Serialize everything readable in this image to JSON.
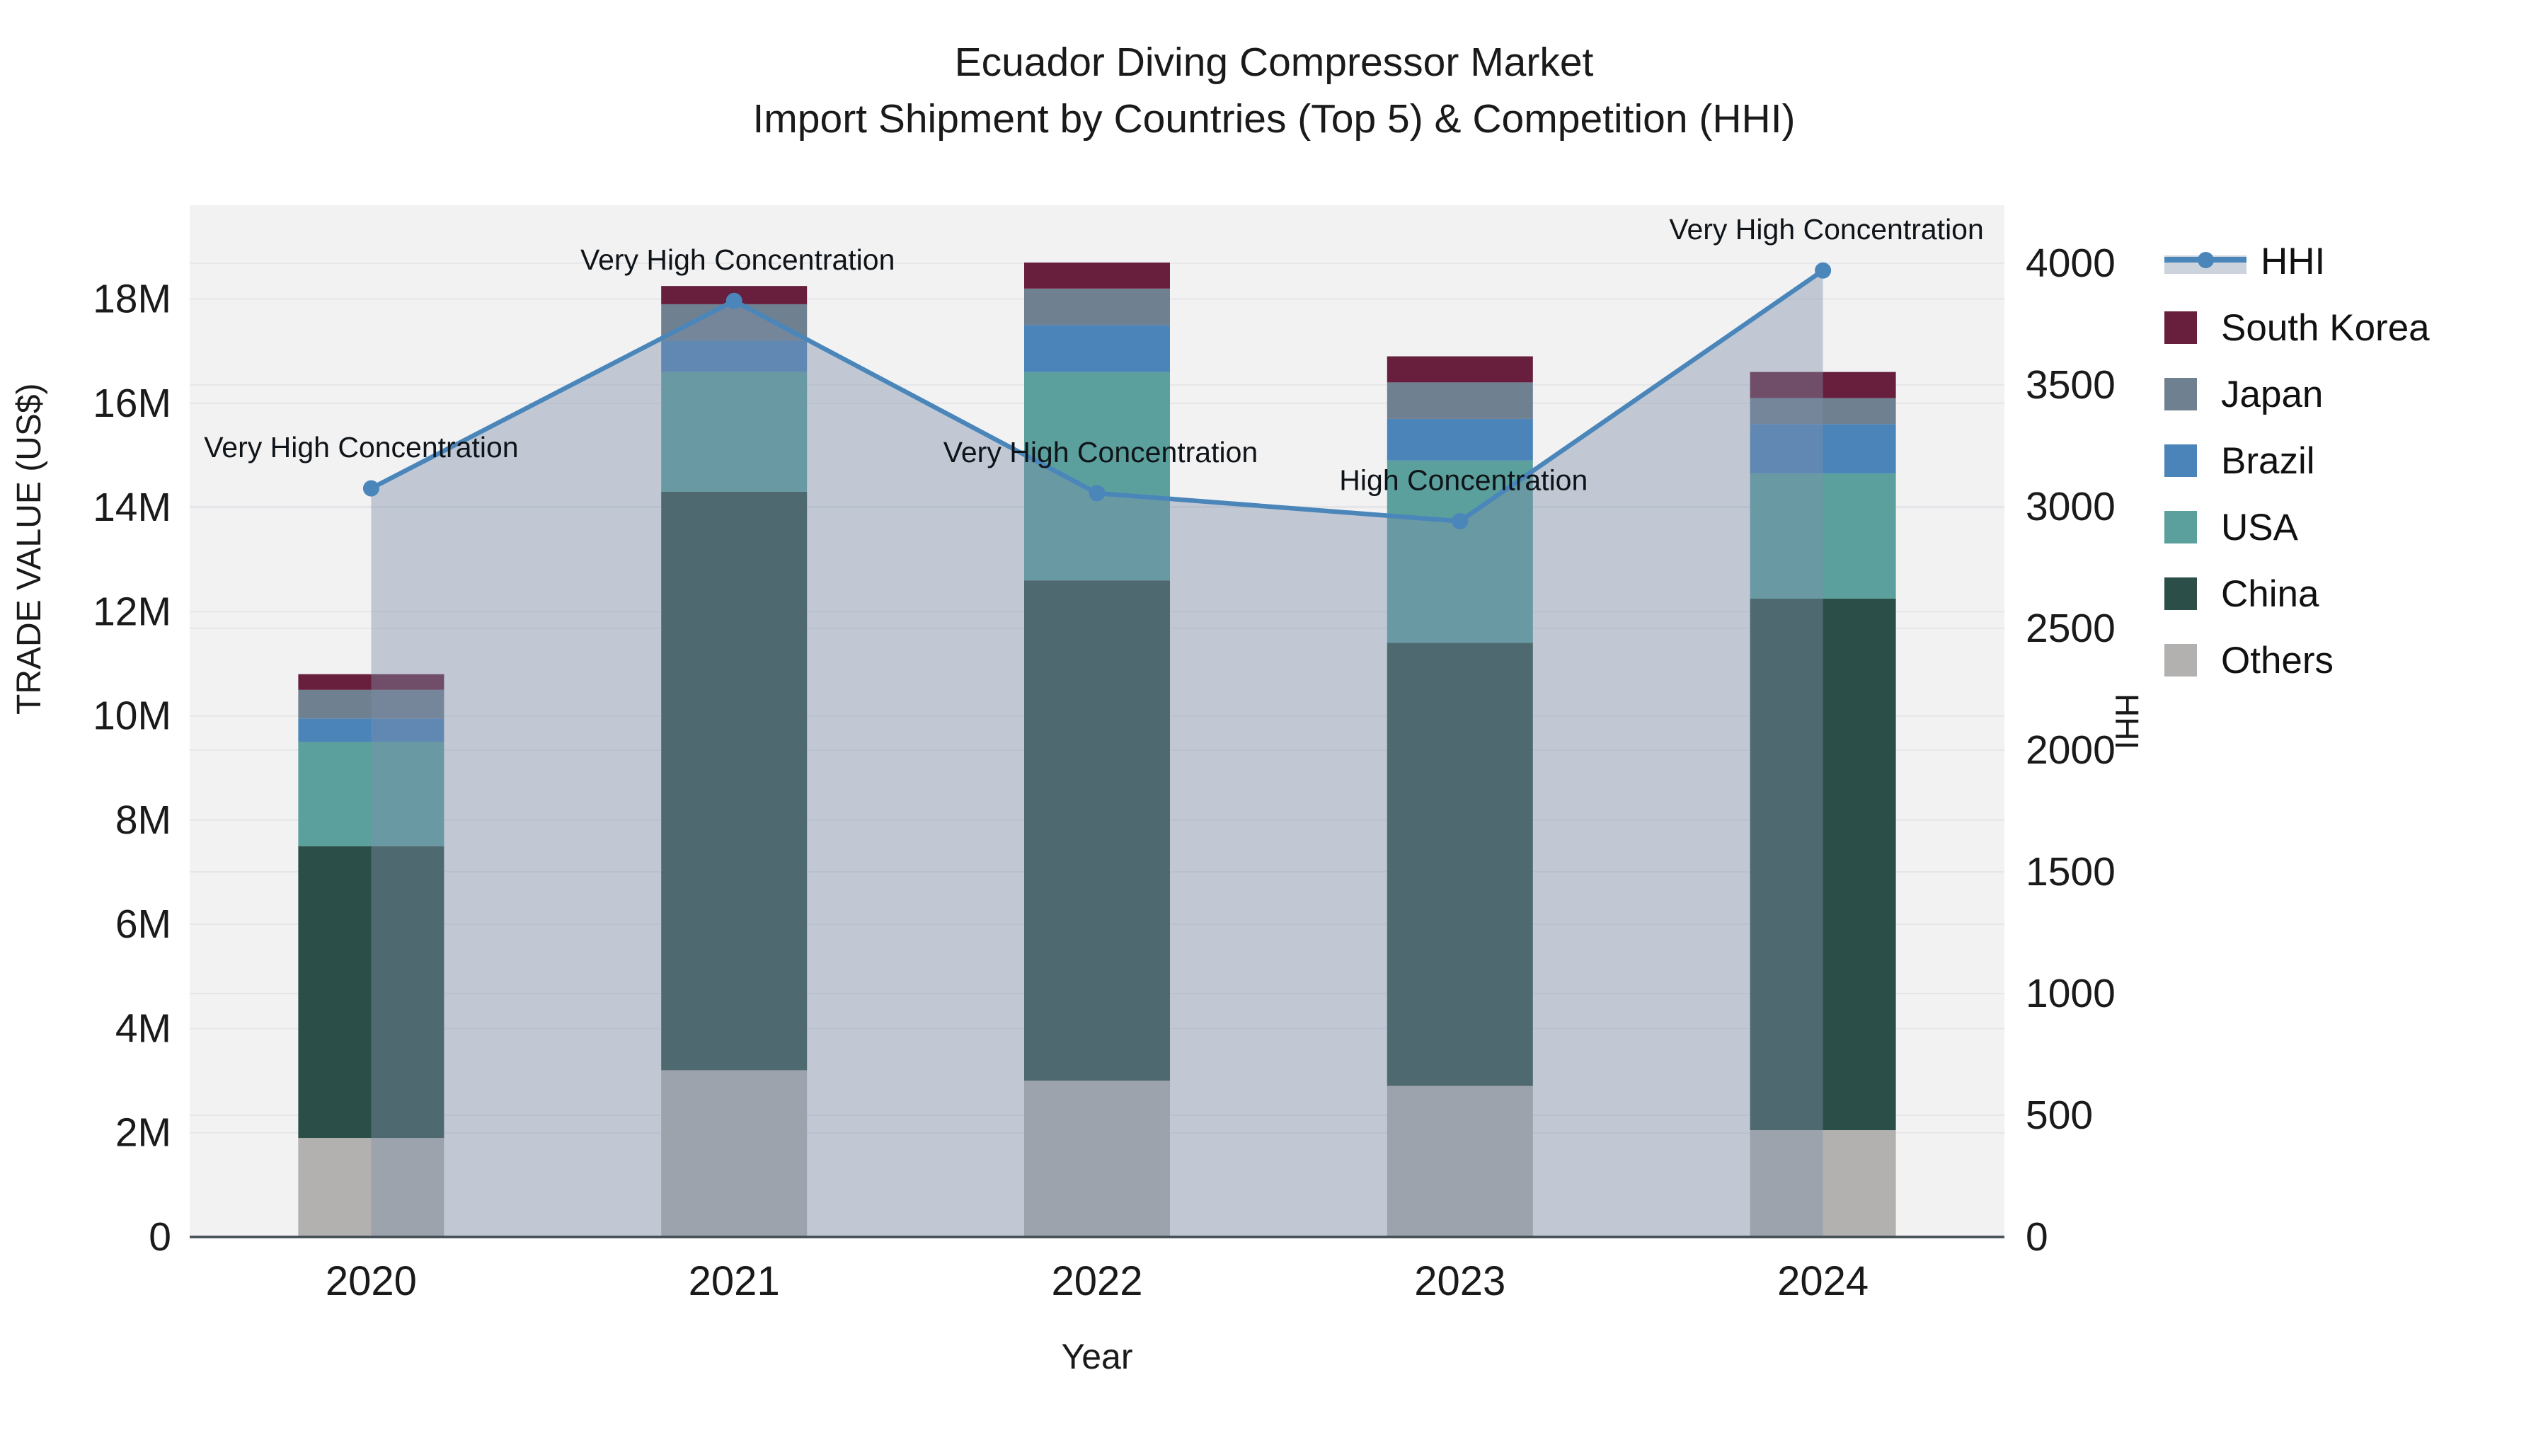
{
  "title": {
    "line1": "Ecuador Diving Compressor Market",
    "line2": "Import Shipment by Countries (Top 5) & Competition (HHI)"
  },
  "axes": {
    "left_title": "TRADE VALUE (US$)",
    "right_title": "HHI",
    "x_title": "Year",
    "left_tick_labels": [
      "0",
      "2M",
      "4M",
      "6M",
      "8M",
      "10M",
      "12M",
      "14M",
      "16M",
      "18M"
    ],
    "right_tick_labels": [
      "0",
      "500",
      "1000",
      "1500",
      "2000",
      "2500",
      "3000",
      "3500",
      "4000"
    ]
  },
  "legend": {
    "hhi_label": "HHI",
    "items": [
      {
        "label": "South Korea",
        "color": "#671f3d"
      },
      {
        "label": "Japan",
        "color": "#6f8090"
      },
      {
        "label": "Brazil",
        "color": "#4a84b8"
      },
      {
        "label": "USA",
        "color": "#5ba09d"
      },
      {
        "label": "China",
        "color": "#2c4e48"
      },
      {
        "label": "Others",
        "color": "#b3b1af"
      }
    ]
  },
  "chart_data": {
    "type": "bar",
    "subtype": "stacked-bars-with-line",
    "categories": [
      "2020",
      "2021",
      "2022",
      "2023",
      "2024"
    ],
    "value_unit": "million US$",
    "series": [
      {
        "name": "Others",
        "color": "#b3b1af",
        "values": [
          1.9,
          3.2,
          3.0,
          2.9,
          2.05
        ]
      },
      {
        "name": "China",
        "color": "#2c4e48",
        "values": [
          5.6,
          11.1,
          9.6,
          8.5,
          10.2
        ]
      },
      {
        "name": "USA",
        "color": "#5ba09d",
        "values": [
          2.0,
          2.3,
          4.0,
          3.5,
          2.4
        ]
      },
      {
        "name": "Brazil",
        "color": "#4a84b8",
        "values": [
          0.45,
          0.6,
          0.9,
          0.8,
          0.95
        ]
      },
      {
        "name": "Japan",
        "color": "#6f8090",
        "values": [
          0.55,
          0.7,
          0.7,
          0.7,
          0.5
        ]
      },
      {
        "name": "South Korea",
        "color": "#671f3d",
        "values": [
          0.3,
          0.35,
          0.5,
          0.5,
          0.5
        ]
      }
    ],
    "bar_totals_million": [
      10.8,
      18.25,
      18.7,
      16.9,
      16.6
    ],
    "line_series": {
      "name": "HHI",
      "color": "#4a86ba",
      "area_fill": "rgba(126,142,170,0.42)",
      "values": [
        3075,
        3845,
        3055,
        2940,
        3970
      ]
    },
    "annotations": [
      {
        "category": "2020",
        "text": "Very High Concentration"
      },
      {
        "category": "2021",
        "text": "Very High Concentration"
      },
      {
        "category": "2022",
        "text": "Very High Concentration"
      },
      {
        "category": "2023",
        "text": "High Concentration"
      },
      {
        "category": "2024",
        "text": "Very High Concentration"
      }
    ],
    "left_axis": {
      "label": "TRADE VALUE (US$)",
      "tick_step_million": 2,
      "tick_max_million": 18,
      "range_max_million": 19.8
    },
    "right_axis": {
      "label": "HHI",
      "tick_step": 500,
      "tick_max": 4000,
      "range_max": 4238
    },
    "grid": true,
    "legend_position": "right",
    "plot_bg": "#f2f2f3",
    "grid_color": "#e6e6e9",
    "axis_line_color": "#3f4b52",
    "text_color": "#1a1a1a"
  }
}
